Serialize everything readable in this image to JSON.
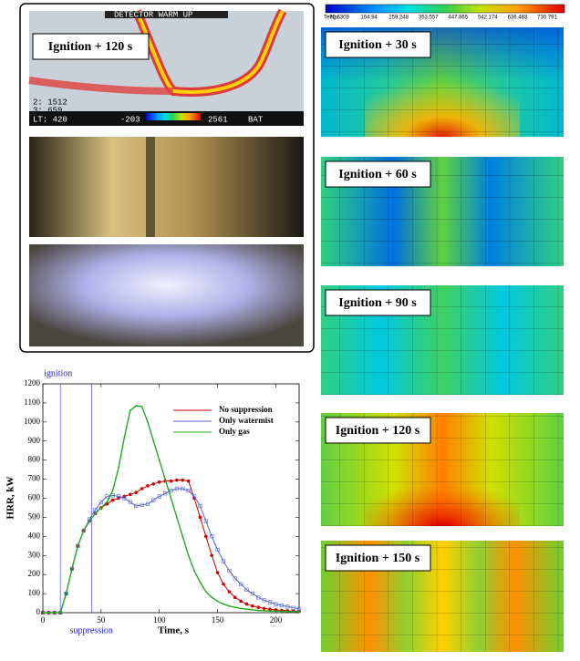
{
  "photos": {
    "label": "Ignition + 120 s",
    "thermal_overlay": [
      "DETECTOR WARM UP",
      "2: 1512",
      "3: 659",
      "LT: 420",
      "-203",
      "2561",
      "BAT"
    ]
  },
  "colorbar": {
    "label": "Temp:",
    "ticks": [
      70.6309,
      164.94,
      259.248,
      353.557,
      447.865,
      542.174,
      636.483,
      730.791
    ]
  },
  "panels": [
    {
      "label": "Ignition + 30 s"
    },
    {
      "label": "Ignition + 60 s"
    },
    {
      "label": "Ignition + 90 s"
    },
    {
      "label": "Ignition + 120 s"
    },
    {
      "label": "Ignition + 150 s"
    }
  ],
  "chart_data": {
    "type": "line",
    "x_label": "Time, s",
    "y_label": "HRR, kW",
    "x": [
      0,
      5,
      10,
      15,
      20,
      25,
      30,
      35,
      40,
      45,
      50,
      55,
      60,
      65,
      70,
      75,
      80,
      85,
      90,
      95,
      100,
      105,
      110,
      115,
      120,
      125,
      130,
      135,
      140,
      145,
      150,
      155,
      160,
      165,
      170,
      175,
      180,
      185,
      190,
      195,
      200,
      205,
      210,
      215,
      220
    ],
    "series": [
      {
        "name": "No suppression",
        "color": "#cc0000",
        "marker": "circle",
        "values": [
          0,
          0,
          0,
          0,
          100,
          230,
          350,
          430,
          480,
          520,
          550,
          570,
          590,
          600,
          610,
          620,
          630,
          650,
          665,
          675,
          685,
          690,
          690,
          695,
          695,
          690,
          600,
          500,
          400,
          300,
          210,
          150,
          110,
          80,
          60,
          45,
          35,
          28,
          22,
          18,
          15,
          12,
          10,
          8,
          7
        ]
      },
      {
        "name": "Only watermist",
        "color": "#5566cc",
        "marker": "square",
        "values": [
          0,
          0,
          0,
          0,
          100,
          230,
          350,
          430,
          490,
          540,
          580,
          610,
          615,
          610,
          600,
          580,
          560,
          565,
          570,
          590,
          610,
          625,
          640,
          650,
          650,
          640,
          610,
          560,
          480,
          400,
          330,
          270,
          220,
          180,
          150,
          120,
          100,
          80,
          65,
          55,
          45,
          38,
          32,
          25,
          20
        ]
      },
      {
        "name": "Only gas",
        "color": "#22aa22",
        "marker": "dot",
        "values": [
          0,
          0,
          0,
          0,
          100,
          230,
          350,
          430,
          480,
          520,
          550,
          580,
          640,
          760,
          920,
          1060,
          1085,
          1080,
          1000,
          900,
          800,
          700,
          600,
          500,
          400,
          300,
          220,
          160,
          110,
          80,
          60,
          45,
          35,
          28,
          22,
          18,
          15,
          12,
          10,
          9,
          8,
          7,
          6,
          5,
          5
        ]
      }
    ],
    "vlines": [
      {
        "x": 15,
        "label": "ignition"
      },
      {
        "x": 42,
        "label": "suppression"
      }
    ],
    "xlim": [
      0,
      220
    ],
    "xticks": [
      0,
      50,
      100,
      150,
      200
    ],
    "ylim": [
      0,
      1200
    ],
    "yticks": [
      0,
      100,
      200,
      300,
      400,
      500,
      600,
      700,
      800,
      900,
      1000,
      1100,
      1200
    ],
    "legend": "upper right"
  }
}
